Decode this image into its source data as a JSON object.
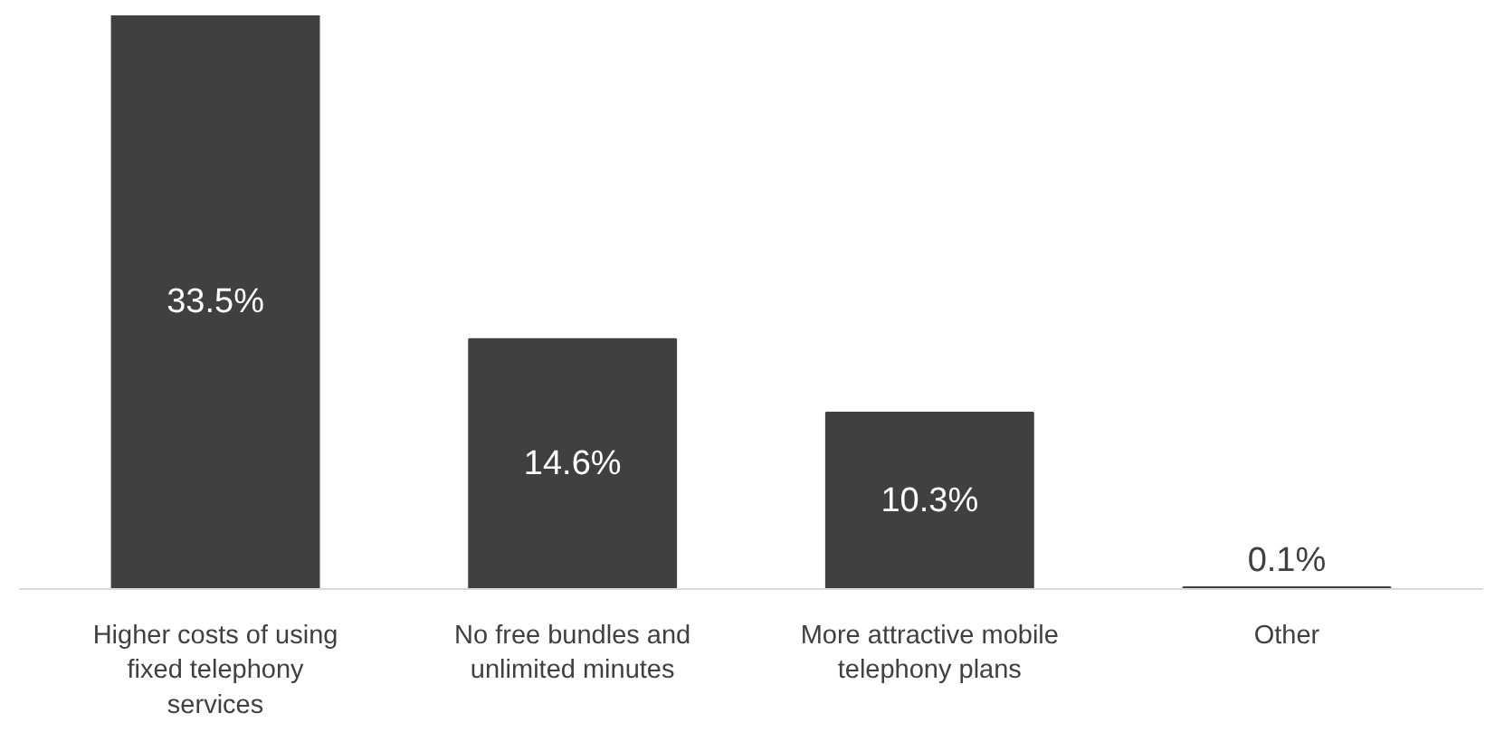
{
  "chart_data": {
    "type": "bar",
    "categories": [
      "Higher costs of using fixed telephony services",
      "No free bundles and unlimited minutes",
      "More attractive mobile telephony plans",
      "Other"
    ],
    "values": [
      33.5,
      14.6,
      10.3,
      0.1
    ],
    "color": "#404040",
    "data_labels": true,
    "value_labels": [
      "33.5%",
      "14.6%",
      "10.3%",
      "0.1%"
    ],
    "grid": false
  }
}
